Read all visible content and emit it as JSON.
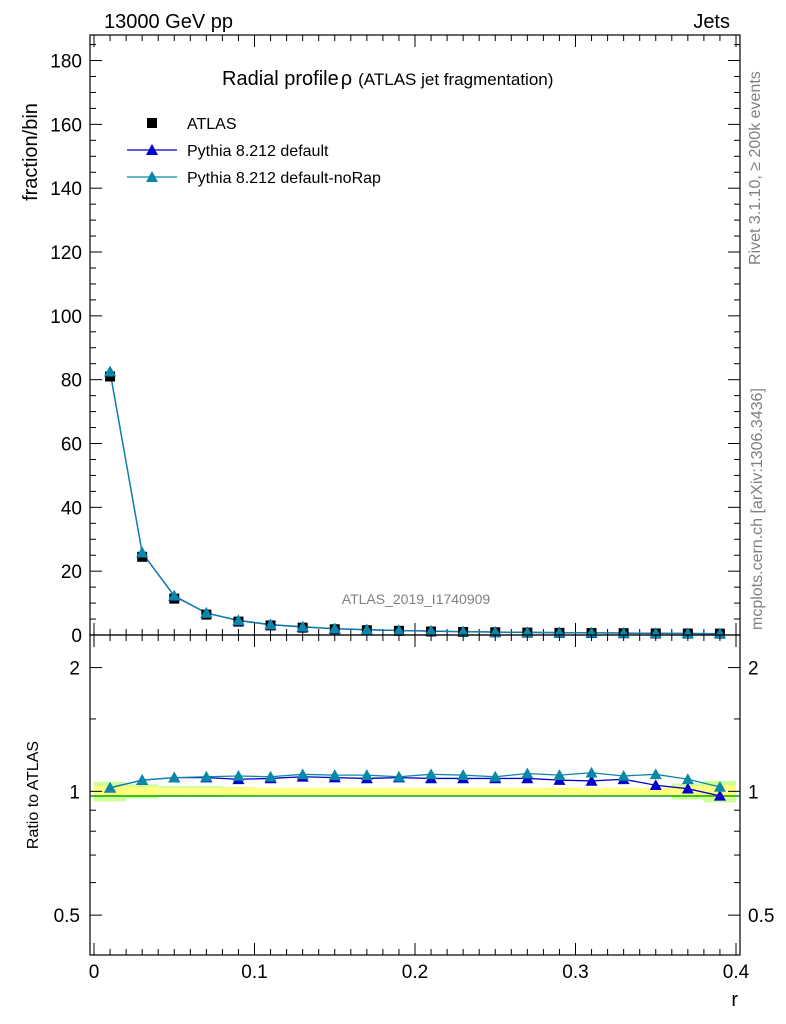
{
  "header": {
    "energy": "13000 GeV pp",
    "process": "Jets"
  },
  "side_text": {
    "rivet": "Rivet 3.1.10, ≥ 200k events",
    "mcplots": "mcplots.cern.ch [arXiv:1306.3436]"
  },
  "colors": {
    "atlas": "#000000",
    "default": "#0000cc",
    "norap": "#0a88a8",
    "band_inner": "#ffff80",
    "band_outer": "#ccff99",
    "ref_line": "#00aa00"
  },
  "chart_data": [
    {
      "type": "scatter",
      "title": "Radial profile",
      "title_symbol": "ρ",
      "title_suffix": "(ATLAS jet fragmentation)",
      "ylabel": "fraction/bin",
      "xlabel": "r",
      "watermark": "ATLAS_2019_I1740909",
      "xlim": [
        -0.0025,
        0.4025
      ],
      "ylim": [
        0,
        188
      ],
      "yticks": [
        0,
        20,
        40,
        60,
        80,
        100,
        120,
        140,
        160,
        180
      ],
      "ytick_labels": [
        "0",
        "20",
        "40",
        "60",
        "80",
        "100",
        "120",
        "140",
        "160",
        "180"
      ],
      "x": [
        0.01,
        0.03,
        0.05,
        0.07,
        0.09,
        0.11,
        0.13,
        0.15,
        0.17,
        0.19,
        0.21,
        0.23,
        0.25,
        0.27,
        0.29,
        0.31,
        0.33,
        0.35,
        0.37,
        0.39
      ],
      "series": [
        {
          "name": "ATLAS",
          "marker": "square",
          "values": [
            81.0,
            24.5,
            11.4,
            6.4,
            4.2,
            3.0,
            2.3,
            1.8,
            1.5,
            1.3,
            1.1,
            0.95,
            0.85,
            0.75,
            0.68,
            0.62,
            0.56,
            0.5,
            0.46,
            0.42
          ]
        },
        {
          "name": "Pythia 8.212 default",
          "marker": "triangle",
          "values": [
            82.5,
            25.8,
            12.2,
            6.9,
            4.5,
            3.2,
            2.5,
            1.95,
            1.6,
            1.4,
            1.2,
            1.02,
            0.92,
            0.81,
            0.73,
            0.66,
            0.6,
            0.52,
            0.47,
            0.41
          ]
        },
        {
          "name": "Pythia 8.212 default-noRap",
          "marker": "triangle",
          "values": [
            82.5,
            25.8,
            12.3,
            6.9,
            4.6,
            3.3,
            2.6,
            2.0,
            1.7,
            1.4,
            1.25,
            1.05,
            0.93,
            0.84,
            0.76,
            0.69,
            0.62,
            0.56,
            0.5,
            0.43
          ]
        }
      ]
    },
    {
      "type": "scatter",
      "ylabel": "Ratio to ATLAS",
      "xlabel": "r",
      "xlim": [
        -0.0025,
        0.4025
      ],
      "ylim": [
        0.4,
        2.4
      ],
      "yscale": "log",
      "yticks": [
        0.5,
        1,
        2
      ],
      "ytick_labels": [
        "0.5",
        "1",
        "2"
      ],
      "xticks": [
        0,
        0.1,
        0.2,
        0.3,
        0.4
      ],
      "xtick_labels": [
        "0",
        "0.1",
        "0.2",
        "0.3",
        "0.4"
      ],
      "x": [
        0.01,
        0.03,
        0.05,
        0.07,
        0.09,
        0.11,
        0.13,
        0.15,
        0.17,
        0.19,
        0.21,
        0.23,
        0.25,
        0.27,
        0.29,
        0.31,
        0.33,
        0.35,
        0.37,
        0.39
      ],
      "band_inner": [
        0.03,
        0.025,
        0.02,
        0.02,
        0.02,
        0.02,
        0.02,
        0.02,
        0.02,
        0.02,
        0.02,
        0.02,
        0.02,
        0.02,
        0.02,
        0.02,
        0.02,
        0.02,
        0.03,
        0.035
      ],
      "band_outer": [
        0.055,
        0.04,
        0.03,
        0.03,
        0.025,
        0.02,
        0.02,
        0.02,
        0.02,
        0.02,
        0.02,
        0.02,
        0.02,
        0.02,
        0.02,
        0.02,
        0.02,
        0.02,
        0.045,
        0.06
      ],
      "series": [
        {
          "name": "Pythia 8.212 default",
          "values": [
            1.02,
            1.065,
            1.08,
            1.08,
            1.07,
            1.075,
            1.085,
            1.08,
            1.075,
            1.08,
            1.075,
            1.075,
            1.075,
            1.075,
            1.065,
            1.06,
            1.07,
            1.035,
            1.015,
            0.975
          ]
        },
        {
          "name": "Pythia 8.212 default-noRap",
          "values": [
            1.02,
            1.065,
            1.08,
            1.085,
            1.09,
            1.085,
            1.1,
            1.095,
            1.095,
            1.085,
            1.1,
            1.095,
            1.085,
            1.105,
            1.095,
            1.11,
            1.09,
            1.1,
            1.07,
            1.025
          ]
        }
      ]
    }
  ]
}
